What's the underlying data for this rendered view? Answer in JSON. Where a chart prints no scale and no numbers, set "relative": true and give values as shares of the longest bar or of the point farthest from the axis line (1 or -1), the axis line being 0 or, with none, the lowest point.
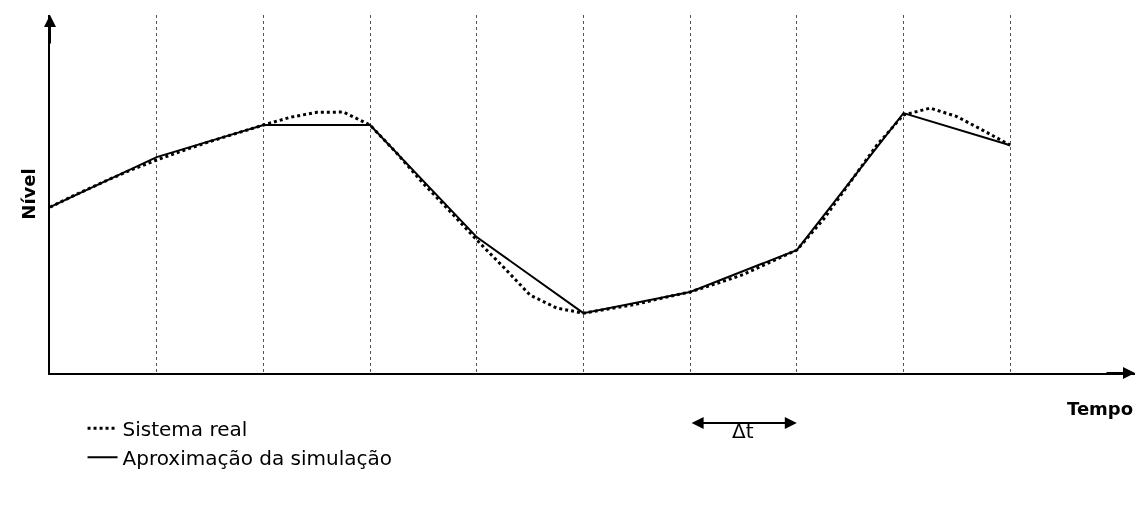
{
  "chart_data": {
    "type": "line",
    "relative": true,
    "xlabel": "Tempo",
    "ylabel": "Nível",
    "annotations": [
      "Δt"
    ],
    "categories": [
      null,
      null,
      null,
      null,
      null,
      null,
      null,
      null,
      null,
      null,
      null,
      null,
      null,
      null,
      null,
      null,
      null,
      null,
      null,
      null,
      null,
      null,
      null,
      null,
      null,
      null,
      null,
      null,
      null,
      null,
      null,
      null,
      null,
      null,
      null,
      null,
      null
    ],
    "grid": "x",
    "legend": "bottom left",
    "marker": "none",
    "series": [
      {
        "name": "Sistema real",
        "color": "#000000",
        "line_style": "dotted",
        "values": [
          0.626,
          0.675,
          0.721,
          0.765,
          0.804,
          0.84,
          0.874,
          0.905,
          0.936,
          0.965,
          0.984,
          0.985,
          0.936,
          0.83,
          0.715,
          0.61,
          0.502,
          0.4,
          0.294,
          0.245,
          0.226,
          0.243,
          0.26,
          0.284,
          0.306,
          0.338,
          0.372,
          0.418,
          0.464,
          0.58,
          0.72,
          0.86,
          0.974,
          1,
          0.968,
          0.915,
          0.86
        ]
      },
      {
        "name": "Aproximação da simulação",
        "color": "#000000",
        "line_style": "solid",
        "values": [
          0.626,
          null,
          null,
          null,
          0.815,
          null,
          null,
          null,
          0.936,
          null,
          null,
          null,
          0.936,
          null,
          null,
          null,
          0.513,
          null,
          null,
          null,
          0.226,
          null,
          null,
          null,
          0.306,
          null,
          null,
          null,
          0.464,
          null,
          null,
          null,
          0.981,
          null,
          null,
          null,
          0.86
        ]
      }
    ]
  }
}
